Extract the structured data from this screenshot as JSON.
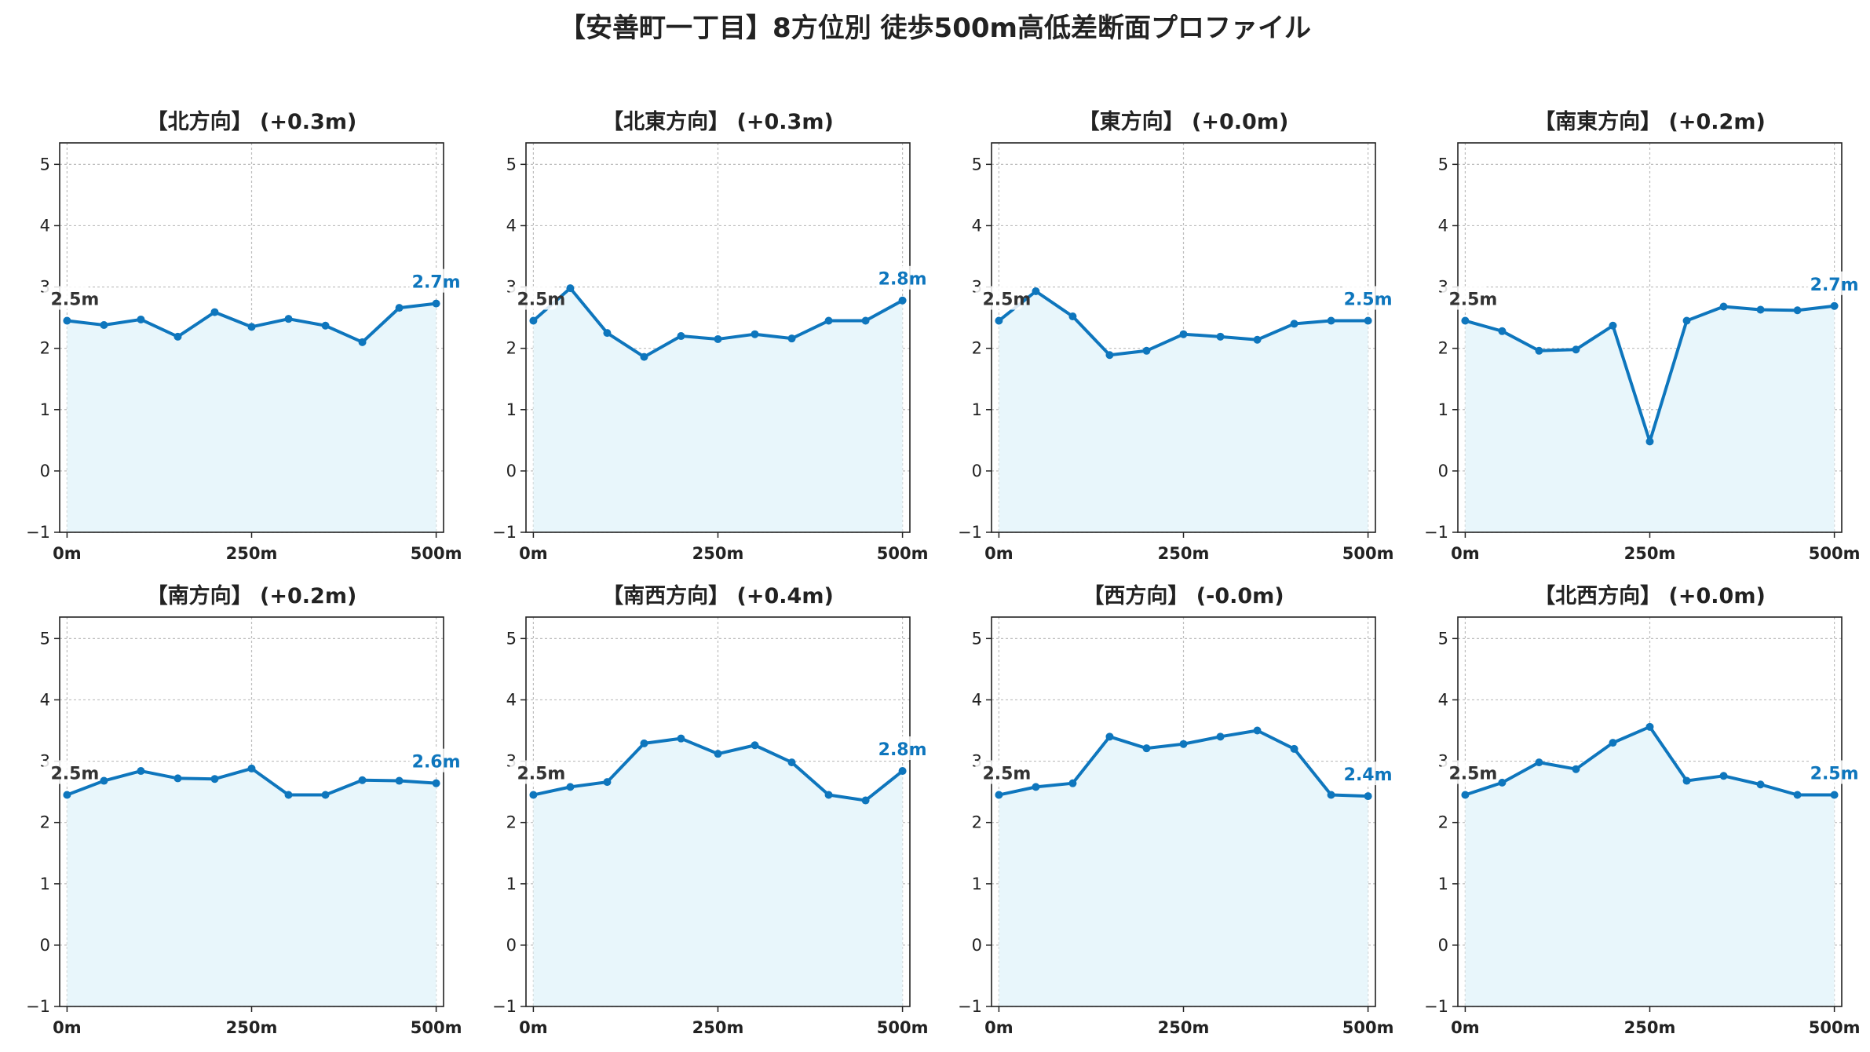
{
  "title": "【安善町一丁目】8方位別 徒歩500m高低差断面プロファイル",
  "colors": {
    "line": "#0e76bd",
    "fill": "#e8f6fb",
    "grid": "#bdbdbd",
    "axis": "#222222",
    "start_label": "#333333"
  },
  "chart_data": [
    {
      "type": "area",
      "title": "【北方向】 (+0.3m)",
      "x": [
        0,
        50,
        100,
        150,
        200,
        250,
        300,
        350,
        400,
        450,
        500
      ],
      "y": [
        2.45,
        2.38,
        2.47,
        2.19,
        2.59,
        2.35,
        2.48,
        2.37,
        2.1,
        2.66,
        2.73
      ],
      "start_label": "2.5m",
      "end_label": "2.7m",
      "xticks": [
        "0m",
        "250m",
        "500m"
      ],
      "xlim": [
        -10,
        510
      ],
      "ylim": [
        -1,
        5.35
      ],
      "yticks": [
        -1,
        0,
        1,
        2,
        3,
        4,
        5
      ],
      "grid": true
    },
    {
      "type": "area",
      "title": "【北東方向】 (+0.3m)",
      "x": [
        0,
        50,
        100,
        150,
        200,
        250,
        300,
        350,
        400,
        450,
        500
      ],
      "y": [
        2.45,
        2.98,
        2.25,
        1.86,
        2.2,
        2.15,
        2.23,
        2.16,
        2.45,
        2.45,
        2.78
      ],
      "start_label": "2.5m",
      "end_label": "2.8m",
      "xticks": [
        "0m",
        "250m",
        "500m"
      ],
      "xlim": [
        -10,
        510
      ],
      "ylim": [
        -1,
        5.35
      ],
      "yticks": [
        -1,
        0,
        1,
        2,
        3,
        4,
        5
      ],
      "grid": true
    },
    {
      "type": "area",
      "title": "【東方向】 (+0.0m)",
      "x": [
        0,
        50,
        100,
        150,
        200,
        250,
        300,
        350,
        400,
        450,
        500
      ],
      "y": [
        2.45,
        2.93,
        2.52,
        1.89,
        1.96,
        2.23,
        2.19,
        2.14,
        2.4,
        2.45,
        2.45
      ],
      "start_label": "2.5m",
      "end_label": "2.5m",
      "xticks": [
        "0m",
        "250m",
        "500m"
      ],
      "xlim": [
        -10,
        510
      ],
      "ylim": [
        -1,
        5.35
      ],
      "yticks": [
        -1,
        0,
        1,
        2,
        3,
        4,
        5
      ],
      "grid": true
    },
    {
      "type": "area",
      "title": "【南東方向】 (+0.2m)",
      "x": [
        0,
        50,
        100,
        150,
        200,
        250,
        300,
        350,
        400,
        450,
        500
      ],
      "y": [
        2.45,
        2.28,
        1.96,
        1.98,
        2.37,
        0.48,
        2.45,
        2.68,
        2.63,
        2.62,
        2.69
      ],
      "start_label": "2.5m",
      "end_label": "2.7m",
      "xticks": [
        "0m",
        "250m",
        "500m"
      ],
      "xlim": [
        -10,
        510
      ],
      "ylim": [
        -1,
        5.35
      ],
      "yticks": [
        -1,
        0,
        1,
        2,
        3,
        4,
        5
      ],
      "grid": true
    },
    {
      "type": "area",
      "title": "【南方向】 (+0.2m)",
      "x": [
        0,
        50,
        100,
        150,
        200,
        250,
        300,
        350,
        400,
        450,
        500
      ],
      "y": [
        2.45,
        2.68,
        2.84,
        2.72,
        2.71,
        2.88,
        2.45,
        2.45,
        2.69,
        2.68,
        2.64
      ],
      "start_label": "2.5m",
      "end_label": "2.6m",
      "xticks": [
        "0m",
        "250m",
        "500m"
      ],
      "xlim": [
        -10,
        510
      ],
      "ylim": [
        -1,
        5.35
      ],
      "yticks": [
        -1,
        0,
        1,
        2,
        3,
        4,
        5
      ],
      "grid": true
    },
    {
      "type": "area",
      "title": "【南西方向】 (+0.4m)",
      "x": [
        0,
        50,
        100,
        150,
        200,
        250,
        300,
        350,
        400,
        450,
        500
      ],
      "y": [
        2.45,
        2.58,
        2.66,
        3.29,
        3.37,
        3.12,
        3.26,
        2.98,
        2.45,
        2.36,
        2.84
      ],
      "start_label": "2.5m",
      "end_label": "2.8m",
      "xticks": [
        "0m",
        "250m",
        "500m"
      ],
      "xlim": [
        -10,
        510
      ],
      "ylim": [
        -1,
        5.35
      ],
      "yticks": [
        -1,
        0,
        1,
        2,
        3,
        4,
        5
      ],
      "grid": true
    },
    {
      "type": "area",
      "title": "【西方向】 (-0.0m)",
      "x": [
        0,
        50,
        100,
        150,
        200,
        250,
        300,
        350,
        400,
        450,
        500
      ],
      "y": [
        2.45,
        2.58,
        2.64,
        3.4,
        3.21,
        3.28,
        3.4,
        3.5,
        3.2,
        2.45,
        2.43
      ],
      "start_label": "2.5m",
      "end_label": "2.4m",
      "xticks": [
        "0m",
        "250m",
        "500m"
      ],
      "xlim": [
        -10,
        510
      ],
      "ylim": [
        -1,
        5.35
      ],
      "yticks": [
        -1,
        0,
        1,
        2,
        3,
        4,
        5
      ],
      "grid": true
    },
    {
      "type": "area",
      "title": "【北西方向】 (+0.0m)",
      "x": [
        0,
        50,
        100,
        150,
        200,
        250,
        300,
        350,
        400,
        450,
        500
      ],
      "y": [
        2.45,
        2.65,
        2.98,
        2.87,
        3.3,
        3.56,
        2.68,
        2.76,
        2.62,
        2.45,
        2.45
      ],
      "start_label": "2.5m",
      "end_label": "2.5m",
      "xticks": [
        "0m",
        "250m",
        "500m"
      ],
      "xlim": [
        -10,
        510
      ],
      "ylim": [
        -1,
        5.35
      ],
      "yticks": [
        -1,
        0,
        1,
        2,
        3,
        4,
        5
      ],
      "grid": true
    }
  ]
}
